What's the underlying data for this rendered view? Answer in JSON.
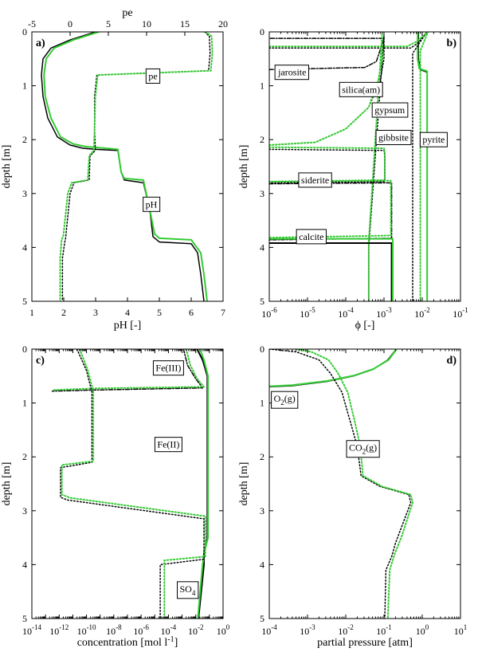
{
  "colors": {
    "black": "#000000",
    "green": "#33cc33",
    "frame": "#000000"
  },
  "chart_data": [
    {
      "panel": "a)",
      "type": "line",
      "xlabel": "pH [-]",
      "ylabel": "depth [m]",
      "xlim": [
        1,
        7
      ],
      "ylim": [
        0,
        5
      ],
      "y_inverted": true,
      "x_ticks": [
        1,
        2,
        3,
        4,
        5,
        6,
        7
      ],
      "x_tick_labels": [
        "1",
        "2",
        "3",
        "4",
        "5",
        "6",
        "7"
      ],
      "y_ticks": [
        0,
        1,
        2,
        3,
        4,
        5
      ],
      "y_tick_labels": [
        "0",
        "1",
        "2",
        "3",
        "4",
        "5"
      ],
      "top_axis": {
        "label": "pe",
        "lim": [
          -5,
          20
        ],
        "ticks": [
          -5,
          0,
          5,
          10,
          15,
          20
        ],
        "tick_labels": [
          "-5",
          "0",
          "5",
          "10",
          "15",
          "20"
        ]
      },
      "annotations": [
        {
          "text": "pe",
          "x": 4.8,
          "y": 0.82
        },
        {
          "text": "pH",
          "x": 4.75,
          "y": 3.2
        }
      ],
      "series": [
        {
          "color": "black",
          "dash": "solid",
          "width": 1.5,
          "x": [
            3.0,
            2.2,
            1.6,
            1.35,
            1.3,
            1.35,
            1.5,
            1.8,
            2.2,
            2.6,
            3.0,
            3.7,
            3.8,
            3.9,
            4.5,
            4.7,
            4.8,
            5.0,
            6.0,
            6.2,
            6.3,
            6.4
          ],
          "y": [
            0.0,
            0.15,
            0.3,
            0.5,
            0.8,
            1.2,
            1.6,
            1.95,
            2.1,
            2.16,
            2.18,
            2.2,
            2.6,
            2.75,
            2.8,
            3.3,
            3.8,
            3.9,
            3.93,
            4.1,
            4.5,
            5.0
          ]
        },
        {
          "color": "green",
          "dash": "solid",
          "width": 2,
          "x": [
            3.1,
            2.3,
            1.7,
            1.45,
            1.38,
            1.42,
            1.6,
            1.9,
            2.3,
            2.7,
            3.1,
            3.7,
            3.8,
            3.9,
            4.5,
            4.7,
            4.85,
            5.0,
            6.0,
            6.3,
            6.4,
            6.5
          ],
          "y": [
            0.0,
            0.15,
            0.3,
            0.5,
            0.8,
            1.2,
            1.6,
            1.95,
            2.08,
            2.13,
            2.15,
            2.18,
            2.6,
            2.72,
            2.75,
            3.3,
            3.75,
            3.83,
            3.86,
            4.1,
            4.5,
            5.0
          ]
        },
        {
          "color": "black",
          "dash": "dot",
          "width": 1.5,
          "uses_top_axis": true,
          "x": [
            17.6,
            18.2,
            18.3,
            18.1,
            3.5,
            3.2,
            3.2,
            3.3,
            2.6,
            2.5,
            0.5,
            0.0,
            -0.6,
            -0.7,
            -1.0,
            -1.0
          ],
          "y": [
            0.0,
            0.08,
            0.4,
            0.72,
            0.8,
            1.2,
            1.8,
            2.2,
            2.3,
            2.75,
            2.8,
            3.0,
            3.85,
            3.9,
            4.2,
            5.0
          ]
        },
        {
          "color": "green",
          "dash": "dot",
          "width": 2,
          "uses_top_axis": true,
          "x": [
            17.7,
            18.5,
            18.6,
            18.4,
            3.6,
            3.3,
            3.2,
            3.1,
            2.5,
            2.3,
            0.2,
            -0.3,
            -0.9,
            -1.1,
            -1.3,
            -1.3
          ],
          "y": [
            0.0,
            0.08,
            0.4,
            0.72,
            0.8,
            1.2,
            1.8,
            2.2,
            2.3,
            2.75,
            2.8,
            3.0,
            3.8,
            3.85,
            4.2,
            5.0
          ]
        }
      ]
    },
    {
      "panel": "b)",
      "type": "line",
      "xlabel": "ϕ [-]",
      "ylabel": "depth [m]",
      "xscale": "log",
      "xlim_exp": [
        -6,
        -1
      ],
      "ylim": [
        0,
        5
      ],
      "y_inverted": true,
      "x_tick_exps": [
        -6,
        -5,
        -4,
        -3,
        -2,
        -1
      ],
      "x_tick_base": "10",
      "y_ticks": [
        0,
        1,
        2,
        3,
        4,
        5
      ],
      "y_tick_labels": [
        "0",
        "1",
        "2",
        "3",
        "4",
        "5"
      ],
      "annotations": [
        {
          "text": "jarosite",
          "x_exp": -5.4,
          "y": 0.75
        },
        {
          "text": "silica(am)",
          "x_exp": -3.6,
          "y": 1.07
        },
        {
          "text": "gypsum",
          "x_exp": -2.85,
          "y": 1.45
        },
        {
          "text": "gibbsite",
          "x_exp": -2.75,
          "y": 1.96
        },
        {
          "text": "pyrite",
          "x_exp": -1.7,
          "y": 2.0
        },
        {
          "text": "siderite",
          "x_exp": -4.8,
          "y": 2.75
        },
        {
          "text": "calcite",
          "x_exp": -4.9,
          "y": 3.8
        }
      ],
      "series": [
        {
          "name": "pyrite",
          "color": "black",
          "dash": "solid",
          "width": 1.5,
          "x_exp": [
            -2.1,
            -2.1,
            -2.05,
            -1.87,
            -1.87
          ],
          "y": [
            0.0,
            0.5,
            0.7,
            0.75,
            5.0
          ]
        },
        {
          "name": "pyrite",
          "color": "green",
          "dash": "solid",
          "width": 2,
          "x_exp": [
            -2.12,
            -2.12,
            -2.08,
            -1.87,
            -1.87
          ],
          "y": [
            0.0,
            0.5,
            0.68,
            0.73,
            5.0
          ]
        },
        {
          "name": "gypsum",
          "color": "black",
          "dash": "dot",
          "width": 1.5,
          "x_exp": [
            -6.0,
            -2.3,
            -2.1,
            -1.9,
            -2.25,
            -2.25
          ],
          "y": [
            0.3,
            0.3,
            0.2,
            0.02,
            0.4,
            5.0
          ]
        },
        {
          "name": "gypsum",
          "color": "green",
          "dash": "dot",
          "width": 2,
          "x_exp": [
            -6.0,
            -2.4,
            -2.15,
            -1.85,
            -2.05,
            -2.05
          ],
          "y": [
            0.27,
            0.27,
            0.18,
            0.0,
            0.35,
            5.0
          ]
        },
        {
          "name": "jarosite",
          "color": "black",
          "dash": "dashdot",
          "width": 1.5,
          "x_exp": [
            -6.0,
            -3.5,
            -3.2,
            -3.0,
            -6.0
          ],
          "y": [
            0.7,
            0.66,
            0.55,
            0.12,
            0.12
          ]
        },
        {
          "name": "silica(am)",
          "color": "black",
          "dash": "dot",
          "width": 1.5,
          "x_exp": [
            -6.0,
            -4.8,
            -4.0,
            -3.4,
            -3.1,
            -3.0,
            -3.0,
            -3.4,
            -3.4
          ],
          "y": [
            2.1,
            2.05,
            1.8,
            1.4,
            0.9,
            0.5,
            0.08,
            4.0,
            5.0
          ]
        },
        {
          "name": "silica(am)",
          "color": "green",
          "dash": "dot",
          "width": 2,
          "x_exp": [
            -6.0,
            -4.8,
            -4.0,
            -3.4,
            -3.15,
            -3.05,
            -3.05,
            -3.4,
            -3.4
          ],
          "y": [
            2.1,
            2.05,
            1.8,
            1.4,
            0.9,
            0.5,
            0.05,
            3.9,
            5.0
          ]
        },
        {
          "name": "gibbsite",
          "color": "black",
          "dash": "dot",
          "width": 1.5,
          "x_exp": [
            -6.0,
            -3.0,
            -2.98,
            -2.98,
            -6.0
          ],
          "y": [
            2.18,
            2.2,
            2.3,
            2.78,
            2.8
          ]
        },
        {
          "name": "gibbsite",
          "color": "green",
          "dash": "dot",
          "width": 2,
          "x_exp": [
            -6.0,
            -3.0,
            -2.98,
            -2.98,
            -6.0
          ],
          "y": [
            2.14,
            2.16,
            2.25,
            2.75,
            2.78
          ]
        },
        {
          "name": "siderite",
          "color": "black",
          "dash": "dashdot",
          "width": 1.5,
          "x_exp": [
            -6.0,
            -2.8,
            -2.8,
            -6.0
          ],
          "y": [
            2.82,
            2.8,
            3.83,
            3.86
          ]
        },
        {
          "name": "siderite",
          "color": "green",
          "dash": "dot",
          "width": 2,
          "x_exp": [
            -6.0,
            -2.82,
            -2.82,
            -6.0
          ],
          "y": [
            2.78,
            2.76,
            3.78,
            3.82
          ]
        },
        {
          "name": "calcite",
          "color": "black",
          "dash": "solid",
          "width": 2,
          "x_exp": [
            -6.0,
            -2.8,
            -2.8
          ],
          "y": [
            3.92,
            3.92,
            5.0
          ]
        },
        {
          "name": "calcite",
          "color": "green",
          "dash": "solid",
          "width": 2,
          "x_exp": [
            -6.0,
            -2.77,
            -2.77
          ],
          "y": [
            3.84,
            3.84,
            5.0
          ]
        }
      ]
    },
    {
      "panel": "c)",
      "type": "line",
      "xlabel": "concentration [mol l",
      "xlabel_sup": "-1",
      "xlabel_tail": "]",
      "ylabel": "depth [m]",
      "xscale": "log",
      "xlim_exp": [
        -14,
        0
      ],
      "ylim": [
        0,
        5
      ],
      "y_inverted": true,
      "x_tick_exps": [
        -14,
        -12,
        -10,
        -8,
        -6,
        -4,
        -2,
        0
      ],
      "x_tick_base": "10",
      "x_tick_zero_label": "10",
      "y_ticks": [
        0,
        1,
        2,
        3,
        4,
        5
      ],
      "y_tick_labels": [
        "0",
        "1",
        "2",
        "3",
        "4",
        "5"
      ],
      "annotations": [
        {
          "text": "Fe(III)",
          "x_exp": -4.0,
          "y": 0.35
        },
        {
          "text": "Fe(II)",
          "x_exp": -4.0,
          "y": 1.77
        },
        {
          "text": "SO",
          "sub": "4",
          "x_exp": -2.6,
          "y": 4.45
        }
      ],
      "series": [
        {
          "name": "SO4",
          "color": "black",
          "dash": "solid",
          "width": 2,
          "x_exp": [
            -1.9,
            -1.5,
            -1.15,
            -1.15,
            -1.4,
            -1.4,
            -1.8
          ],
          "y": [
            0.0,
            0.2,
            0.5,
            3.5,
            3.8,
            4.0,
            5.0
          ]
        },
        {
          "name": "SO4",
          "color": "green",
          "dash": "solid",
          "width": 2,
          "x_exp": [
            -1.7,
            -1.4,
            -1.1,
            -1.1,
            -1.35,
            -1.5,
            -1.85
          ],
          "y": [
            0.0,
            0.2,
            0.5,
            3.5,
            3.75,
            4.0,
            5.0
          ]
        },
        {
          "name": "Fe(III)",
          "color": "black",
          "dash": "dashdot",
          "width": 1.5,
          "x_exp": [
            -2.9,
            -2.6,
            -2.0,
            -1.5,
            -9.6,
            -12.5
          ],
          "y": [
            0.0,
            0.3,
            0.55,
            0.72,
            0.76,
            0.78
          ]
        },
        {
          "name": "Fe(III)",
          "color": "green",
          "dash": "dot",
          "width": 2,
          "x_exp": [
            -2.7,
            -2.4,
            -1.9,
            -1.4,
            -9.5,
            -12.5
          ],
          "y": [
            0.0,
            0.3,
            0.55,
            0.7,
            0.73,
            0.76
          ]
        },
        {
          "name": "Fe(II)",
          "color": "black",
          "dash": "dot",
          "width": 1.5,
          "x_exp": [
            -10.7,
            -10.0,
            -9.6,
            -9.6,
            -11.9,
            -11.9,
            -11.4,
            -1.4,
            -1.4,
            -4.6,
            -4.6
          ],
          "y": [
            0.0,
            0.4,
            0.8,
            2.1,
            2.2,
            2.75,
            2.8,
            3.15,
            3.9,
            4.0,
            5.0
          ]
        },
        {
          "name": "Fe(II)",
          "color": "green",
          "dash": "dot",
          "width": 2,
          "x_exp": [
            -10.5,
            -9.9,
            -9.5,
            -9.5,
            -11.8,
            -11.8,
            -11.2,
            -1.3,
            -1.3,
            -4.3,
            -4.3
          ],
          "y": [
            0.0,
            0.4,
            0.78,
            2.08,
            2.15,
            2.7,
            2.76,
            3.1,
            3.85,
            3.92,
            5.0
          ]
        }
      ]
    },
    {
      "panel": "d)",
      "type": "line",
      "xlabel": "partial pressure [atm]",
      "ylabel": "depth [m]",
      "xscale": "log",
      "xlim_exp": [
        -4,
        1
      ],
      "ylim": [
        0,
        5
      ],
      "y_inverted": true,
      "x_tick_exps": [
        -4,
        -3,
        -2,
        -1,
        0,
        1
      ],
      "x_tick_base": "10",
      "y_ticks": [
        0,
        1,
        2,
        3,
        4,
        5
      ],
      "y_tick_labels": [
        "0",
        "1",
        "2",
        "3",
        "4",
        "5"
      ],
      "annotations": [
        {
          "text": "O",
          "sub": "2",
          "tail": "(g)",
          "x_exp": -3.6,
          "y": 0.92
        },
        {
          "text": "CO",
          "sub": "2",
          "tail": "(g)",
          "x_exp": -1.55,
          "y": 1.83
        }
      ],
      "series": [
        {
          "name": "O2(g)",
          "color": "black",
          "dash": "solid",
          "width": 1.5,
          "x_exp": [
            -0.68,
            -0.9,
            -1.3,
            -1.8,
            -2.5,
            -3.4,
            -4.0
          ],
          "y": [
            0.0,
            0.2,
            0.38,
            0.5,
            0.6,
            0.68,
            0.7
          ]
        },
        {
          "name": "O2(g)",
          "color": "green",
          "dash": "solid",
          "width": 2,
          "x_exp": [
            -0.67,
            -0.88,
            -1.28,
            -1.78,
            -2.48,
            -3.4,
            -4.0
          ],
          "y": [
            0.0,
            0.2,
            0.37,
            0.49,
            0.59,
            0.67,
            0.69
          ]
        },
        {
          "name": "CO2(g)",
          "color": "black",
          "dash": "dot",
          "width": 1.5,
          "x_exp": [
            -4.0,
            -3.3,
            -2.7,
            -2.4,
            -2.1,
            -1.9,
            -1.7,
            -1.6,
            -1.1,
            -0.35,
            -0.3,
            -0.7,
            -0.8,
            -0.95,
            -0.98
          ],
          "y": [
            0.0,
            0.05,
            0.2,
            0.45,
            0.8,
            1.3,
            1.8,
            2.35,
            2.55,
            2.7,
            2.85,
            3.6,
            3.85,
            4.1,
            5.0
          ]
        },
        {
          "name": "CO2(g)",
          "color": "green",
          "dash": "dot",
          "width": 2,
          "x_exp": [
            -3.3,
            -2.9,
            -2.45,
            -2.2,
            -1.95,
            -1.78,
            -1.62,
            -1.55,
            -1.05,
            -0.3,
            -0.25,
            -0.55,
            -0.72,
            -0.85,
            -0.9
          ],
          "y": [
            0.0,
            0.05,
            0.2,
            0.45,
            0.8,
            1.3,
            1.8,
            2.35,
            2.55,
            2.7,
            2.85,
            3.5,
            3.8,
            4.1,
            5.0
          ]
        }
      ]
    }
  ]
}
